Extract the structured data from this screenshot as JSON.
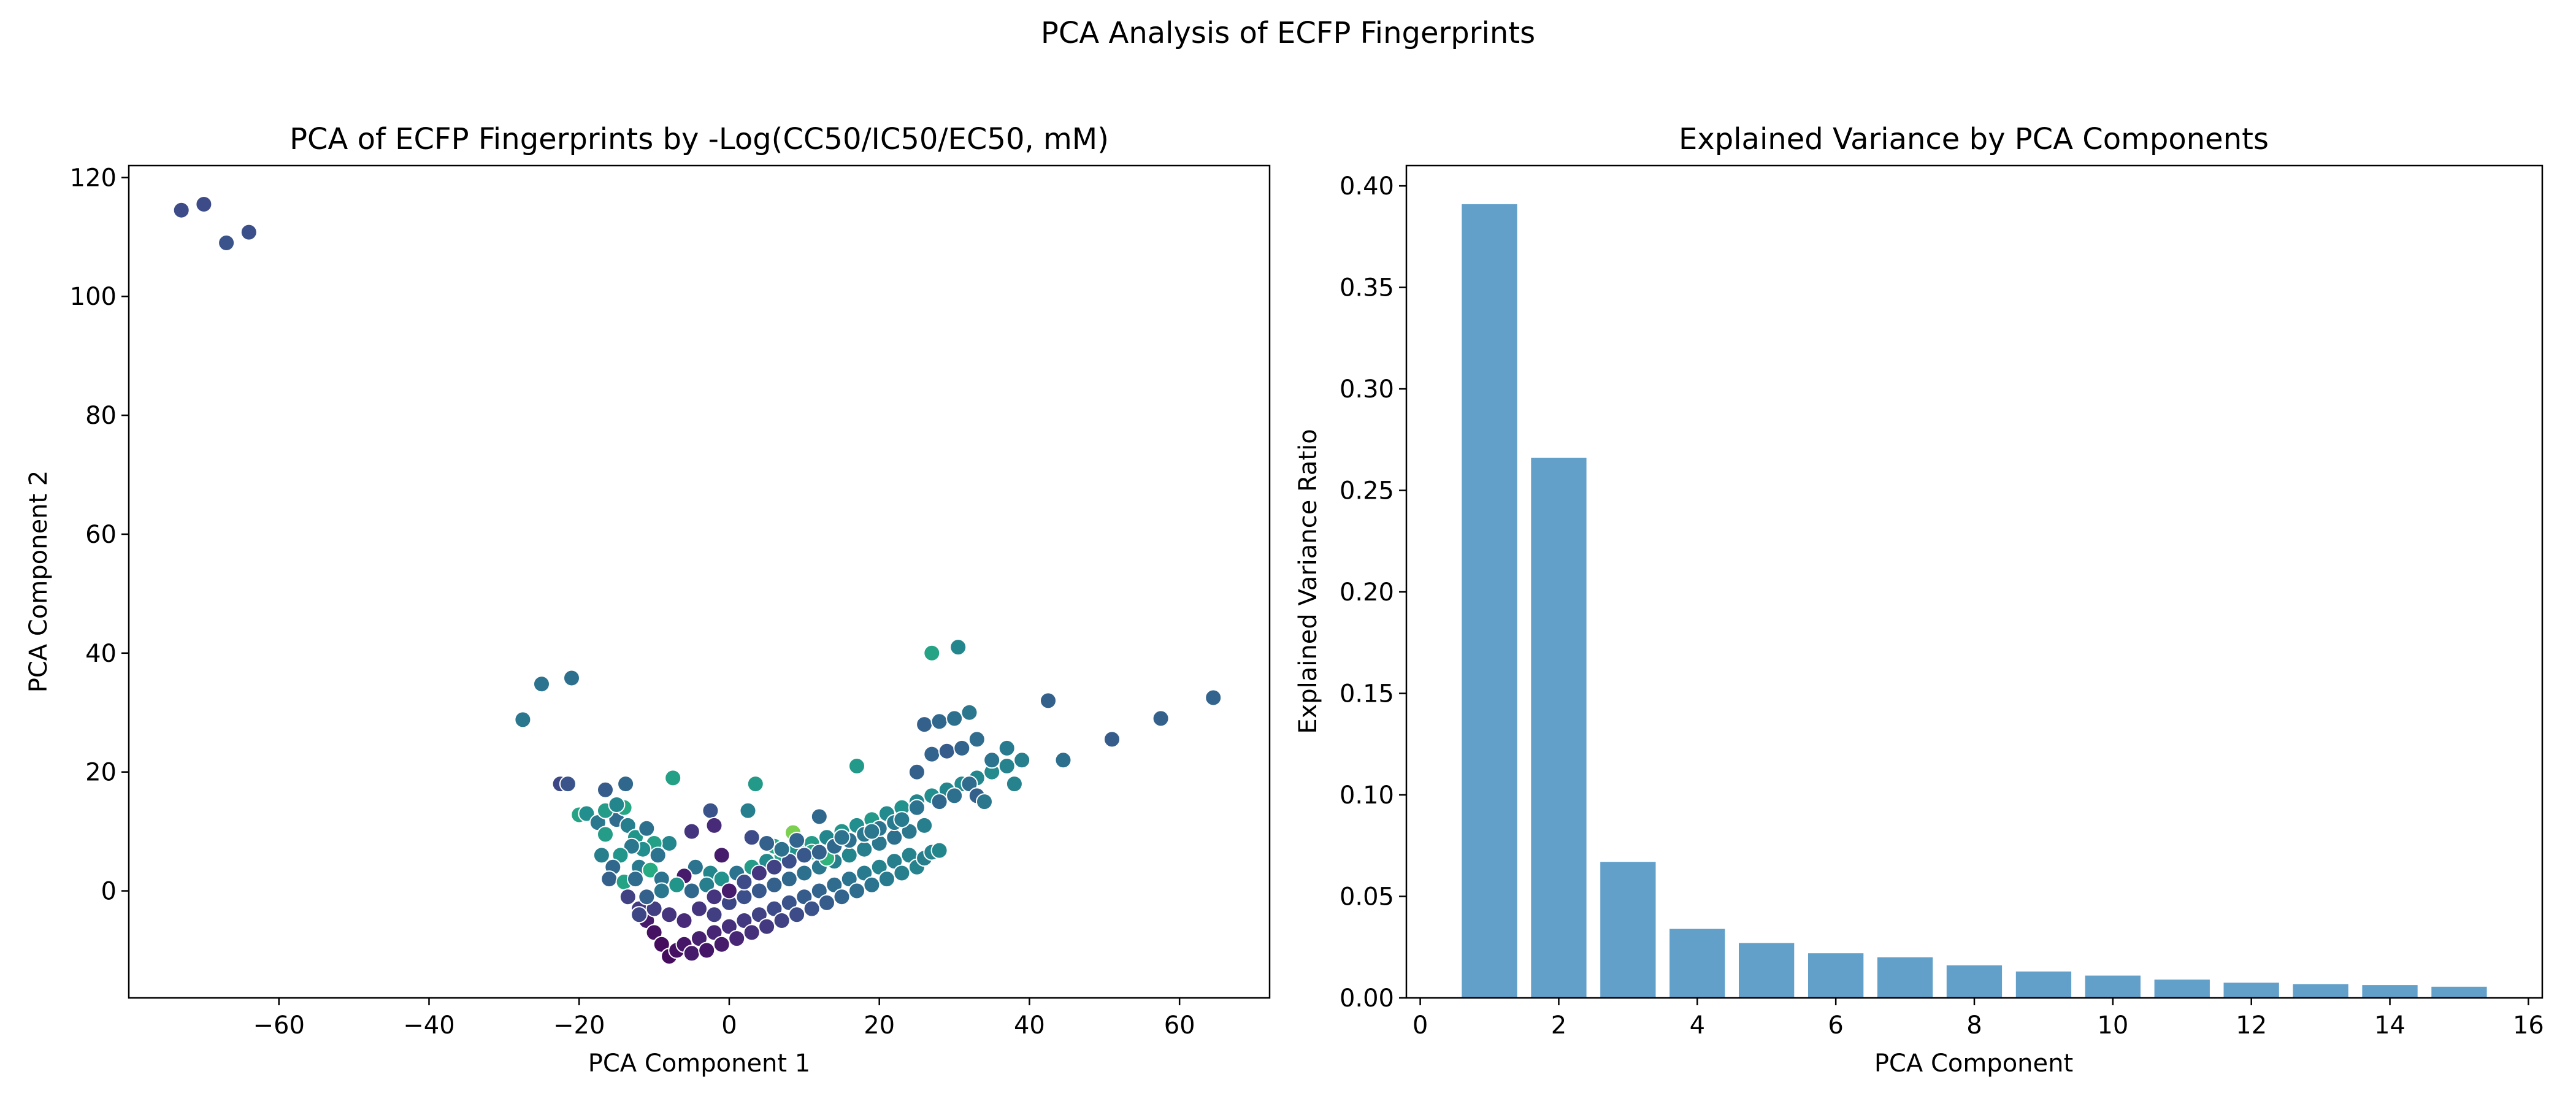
{
  "figure": {
    "suptitle": "PCA Analysis of ECFP Fingerprints",
    "colors": {
      "viridis": [
        "#440154",
        "#472c7a",
        "#3b518b",
        "#2c718e",
        "#21908d",
        "#27ad81",
        "#5cc863",
        "#aadc32",
        "#fde725"
      ],
      "bar": "#1f77b4"
    }
  },
  "chart_data": [
    {
      "type": "scatter",
      "title": "PCA of ECFP Fingerprints by -Log(CC50/IC50/EC50, mM)",
      "xlabel": "PCA Component 1",
      "ylabel": "PCA Component 2",
      "xlim": [
        -80,
        72
      ],
      "ylim": [
        -18,
        122
      ],
      "xticks": [
        -60,
        -40,
        -20,
        0,
        20,
        40,
        60
      ],
      "yticks": [
        0,
        20,
        40,
        60,
        80,
        100,
        120
      ],
      "xtick_labels": [
        "−60",
        "−40",
        "−20",
        "0",
        "20",
        "40",
        "60"
      ],
      "ytick_labels": [
        "0",
        "20",
        "40",
        "60",
        "80",
        "100",
        "120"
      ],
      "color_scale": "viridis",
      "grid": false,
      "points": [
        [
          -73,
          114.5,
          2.5
        ],
        [
          -70,
          115.5,
          2.5
        ],
        [
          -67,
          109,
          2.7
        ],
        [
          -64,
          110.8,
          2.6
        ],
        [
          -27.5,
          28.8,
          3.6
        ],
        [
          -25,
          34.8,
          3.5
        ],
        [
          -21,
          35.8,
          3.4
        ],
        [
          -22.5,
          18,
          2.4
        ],
        [
          -21.5,
          18,
          2.7
        ],
        [
          -20,
          12.8,
          4.8
        ],
        [
          -13.8,
          18,
          3.2
        ],
        [
          -16.5,
          17,
          2.9
        ],
        [
          -7.5,
          19,
          4.7
        ],
        [
          -2.5,
          13.5,
          2.7
        ],
        [
          2.5,
          13.5,
          3.8
        ],
        [
          3.5,
          18,
          4.5
        ],
        [
          -8,
          8,
          4
        ],
        [
          -5,
          10,
          2
        ],
        [
          -2,
          11,
          1.8
        ],
        [
          -1,
          6,
          1.5
        ],
        [
          -4.5,
          4,
          3.5
        ],
        [
          -2.5,
          3,
          4
        ],
        [
          -6,
          2.5,
          1.5
        ],
        [
          -19,
          13,
          4.2
        ],
        [
          -17.5,
          11.5,
          3.6
        ],
        [
          -16.5,
          9.5,
          4.6
        ],
        [
          -15,
          12,
          3.3
        ],
        [
          -14,
          14,
          4.9
        ],
        [
          -13.5,
          11,
          3.8
        ],
        [
          -12.5,
          9,
          4.4
        ],
        [
          -11,
          10.5,
          3.4
        ],
        [
          -10,
          8,
          4.7
        ],
        [
          -9.5,
          6,
          3.5
        ],
        [
          -11.5,
          7,
          4.2
        ],
        [
          -13,
          7.5,
          3.6
        ],
        [
          -14.5,
          6,
          4.4
        ],
        [
          -15.5,
          4,
          3.2
        ],
        [
          -17,
          6,
          3.8
        ],
        [
          -16,
          2,
          3
        ],
        [
          -14,
          1.5,
          4.8
        ],
        [
          -12,
          4,
          3.7
        ],
        [
          -10.5,
          3.5,
          5
        ],
        [
          -9,
          2,
          3.5
        ],
        [
          -12.5,
          2,
          3.3
        ],
        [
          -16.5,
          13.5,
          4.6
        ],
        [
          -15,
          14.5,
          4
        ],
        [
          -13.5,
          -1,
          2.3
        ],
        [
          -12,
          -3,
          2.1
        ],
        [
          -11,
          -5,
          1.5
        ],
        [
          -10,
          -7,
          1.3
        ],
        [
          -9,
          -9,
          1.2
        ],
        [
          -8,
          -11,
          1.2
        ],
        [
          -7,
          -10,
          1.3
        ],
        [
          -6,
          -9,
          1.4
        ],
        [
          -5,
          -10.5,
          1.5
        ],
        [
          -4,
          -8,
          1.6
        ],
        [
          -3,
          -10,
          1.4
        ],
        [
          -2,
          -7,
          1.7
        ],
        [
          -1,
          -9,
          1.5
        ],
        [
          0,
          -6,
          1.9
        ],
        [
          1,
          -8,
          1.7
        ],
        [
          2,
          -5,
          2.1
        ],
        [
          3,
          -7,
          1.9
        ],
        [
          4,
          -4,
          2.3
        ],
        [
          5,
          -6,
          2.1
        ],
        [
          6,
          -3,
          2.5
        ],
        [
          7,
          -5,
          2.3
        ],
        [
          8,
          -2,
          2.7
        ],
        [
          9,
          -4,
          2.5
        ],
        [
          10,
          -1,
          2.9
        ],
        [
          11,
          -3,
          2.7
        ],
        [
          12,
          0,
          3.1
        ],
        [
          13,
          -2,
          2.9
        ],
        [
          14,
          1,
          3.3
        ],
        [
          15,
          -1,
          3.1
        ],
        [
          16,
          2,
          3.5
        ],
        [
          17,
          0,
          3.3
        ],
        [
          18,
          3,
          3.7
        ],
        [
          19,
          1,
          3.5
        ],
        [
          20,
          4,
          3.9
        ],
        [
          21,
          2,
          3.7
        ],
        [
          22,
          5,
          3.8
        ],
        [
          23,
          3,
          3.8
        ],
        [
          24,
          6,
          3.9
        ],
        [
          25,
          4,
          3.9
        ],
        [
          26,
          5.5,
          3.8
        ],
        [
          27,
          6.5,
          3.9
        ],
        [
          28,
          6.8,
          4
        ],
        [
          -12,
          -4,
          2.4
        ],
        [
          -10,
          -3,
          2.2
        ],
        [
          -8,
          -4,
          2
        ],
        [
          -6,
          -5,
          1.8
        ],
        [
          -4,
          -3,
          2
        ],
        [
          -2,
          -4,
          2.2
        ],
        [
          0,
          -2,
          2.4
        ],
        [
          2,
          -1,
          2.6
        ],
        [
          4,
          0,
          2.8
        ],
        [
          6,
          1,
          3
        ],
        [
          8,
          2,
          3.2
        ],
        [
          10,
          3,
          3.4
        ],
        [
          12,
          4,
          3.6
        ],
        [
          14,
          5,
          3.8
        ],
        [
          16,
          6,
          4
        ],
        [
          18,
          7,
          3.8
        ],
        [
          20,
          8,
          3.6
        ],
        [
          22,
          9,
          3.4
        ],
        [
          24,
          10,
          3.6
        ],
        [
          26,
          11,
          3.8
        ],
        [
          -11,
          -1,
          3
        ],
        [
          -9,
          0,
          3.6
        ],
        [
          -7,
          1,
          4.4
        ],
        [
          -5,
          0,
          3.2
        ],
        [
          -3,
          1,
          3.8
        ],
        [
          -1,
          2,
          4.3
        ],
        [
          1,
          3,
          3.5
        ],
        [
          3,
          4,
          4.6
        ],
        [
          5,
          5,
          4.1
        ],
        [
          7,
          6,
          4.8
        ],
        [
          9,
          7,
          4.3
        ],
        [
          11,
          8,
          4.6
        ],
        [
          13,
          9,
          4
        ],
        [
          15,
          10,
          4.4
        ],
        [
          17,
          11,
          4.2
        ],
        [
          19,
          12,
          4.5
        ],
        [
          21,
          13,
          4.1
        ],
        [
          23,
          14,
          4.3
        ],
        [
          25,
          15,
          4
        ],
        [
          27,
          16,
          4.2
        ],
        [
          29,
          17,
          4
        ],
        [
          31,
          18,
          4.1
        ],
        [
          33,
          19,
          4
        ],
        [
          35,
          20,
          4.1
        ],
        [
          37,
          21,
          3.9
        ],
        [
          39,
          22,
          3.8
        ],
        [
          8.5,
          9.8,
          6.2
        ],
        [
          11,
          6.5,
          4.9
        ],
        [
          13,
          5.5,
          5.2
        ],
        [
          6,
          7.5,
          4.9
        ],
        [
          -2,
          -1,
          2
        ],
        [
          0,
          0,
          1.5
        ],
        [
          2,
          1.5,
          2.5
        ],
        [
          4,
          3,
          2
        ],
        [
          6,
          4,
          2.3
        ],
        [
          8,
          5,
          2.6
        ],
        [
          10,
          6,
          2.8
        ],
        [
          12,
          6.5,
          3
        ],
        [
          14,
          7.5,
          3.2
        ],
        [
          16,
          8.5,
          3.4
        ],
        [
          18,
          9.5,
          3.6
        ],
        [
          20,
          10.5,
          3.5
        ],
        [
          22,
          11.5,
          3.7
        ],
        [
          3,
          9,
          2.5
        ],
        [
          5,
          8,
          3
        ],
        [
          7,
          7,
          3.4
        ],
        [
          9,
          8.5,
          3.1
        ],
        [
          12,
          12.5,
          3.2
        ],
        [
          15,
          9,
          3.5
        ],
        [
          19,
          10,
          3.6
        ],
        [
          23,
          12,
          3.7
        ],
        [
          25,
          14,
          3.5
        ],
        [
          28,
          15,
          3.2
        ],
        [
          30,
          16,
          3.4
        ],
        [
          32,
          18,
          3.3
        ],
        [
          33,
          16,
          3
        ],
        [
          34,
          15,
          3.6
        ],
        [
          25,
          20,
          3
        ],
        [
          27,
          23,
          3.1
        ],
        [
          29,
          23.5,
          2.9
        ],
        [
          31,
          24,
          3.1
        ],
        [
          33,
          25.5,
          3.3
        ],
        [
          35,
          22,
          3.5
        ],
        [
          37,
          24,
          3.7
        ],
        [
          38,
          18,
          3.9
        ],
        [
          26,
          28,
          3
        ],
        [
          28,
          28.5,
          3.2
        ],
        [
          30,
          29,
          3.4
        ],
        [
          32,
          30,
          3.6
        ],
        [
          17,
          21,
          4.5
        ],
        [
          27,
          40,
          4.8
        ],
        [
          30.5,
          41,
          4
        ],
        [
          42.5,
          32,
          3
        ],
        [
          44.5,
          22,
          3.4
        ],
        [
          51,
          25.5,
          2.9
        ],
        [
          57.5,
          29,
          3
        ],
        [
          64.5,
          32.5,
          3.1
        ]
      ]
    },
    {
      "type": "bar",
      "title": "Explained Variance by PCA Components",
      "xlabel": "PCA Component",
      "ylabel": "Explained Variance Ratio",
      "xlim": [
        -0.2,
        16.2
      ],
      "ylim": [
        0,
        0.41
      ],
      "xticks": [
        0,
        2,
        4,
        6,
        8,
        10,
        12,
        14,
        16
      ],
      "yticks": [
        0.0,
        0.05,
        0.1,
        0.15,
        0.2,
        0.25,
        0.3,
        0.35,
        0.4
      ],
      "xtick_labels": [
        "0",
        "2",
        "4",
        "6",
        "8",
        "10",
        "12",
        "14",
        "16"
      ],
      "ytick_labels": [
        "0.00",
        "0.05",
        "0.10",
        "0.15",
        "0.20",
        "0.25",
        "0.30",
        "0.35",
        "0.40"
      ],
      "grid": false,
      "categories": [
        1,
        2,
        3,
        4,
        5,
        6,
        7,
        8,
        9,
        10,
        11,
        12,
        13,
        14,
        15
      ],
      "values": [
        0.391,
        0.266,
        0.067,
        0.034,
        0.027,
        0.022,
        0.02,
        0.016,
        0.013,
        0.011,
        0.009,
        0.0075,
        0.0068,
        0.0063,
        0.0055
      ]
    }
  ]
}
